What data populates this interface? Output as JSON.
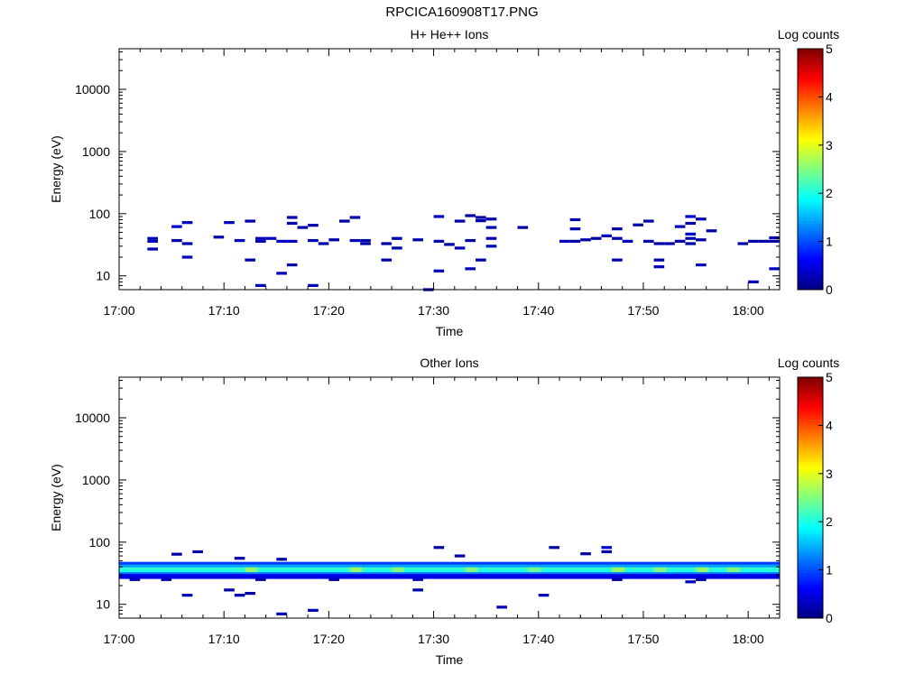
{
  "page_title": "RPCICA160908T17.PNG",
  "chart_data": [
    {
      "type": "heatmap",
      "title": "H+ He++ Ions",
      "xlabel": "Time",
      "ylabel": "Energy (eV)",
      "x_range_minutes": [
        0,
        63
      ],
      "x_ticks": [
        {
          "t": 0,
          "label": "17:00"
        },
        {
          "t": 10,
          "label": "17:10"
        },
        {
          "t": 20,
          "label": "17:20"
        },
        {
          "t": 30,
          "label": "17:30"
        },
        {
          "t": 40,
          "label": "17:40"
        },
        {
          "t": 50,
          "label": "17:50"
        },
        {
          "t": 60,
          "label": "18:00"
        }
      ],
      "y_scale": "log",
      "y_range": [
        6,
        45000
      ],
      "y_ticks": [
        {
          "v": 10,
          "label": "10"
        },
        {
          "v": 100,
          "label": "100"
        },
        {
          "v": 1000,
          "label": "1000"
        },
        {
          "v": 10000,
          "label": "10000"
        }
      ],
      "colorbar": {
        "label": "Log counts",
        "range": [
          0,
          5
        ],
        "ticks": [
          "0",
          "1",
          "2",
          "3",
          "4",
          "5"
        ]
      },
      "cells": [
        {
          "t": 3.2,
          "e": 40,
          "c": 0.3
        },
        {
          "t": 3.2,
          "e": 36,
          "c": 0.3
        },
        {
          "t": 3.2,
          "e": 27,
          "c": 0.3
        },
        {
          "t": 5.5,
          "e": 62,
          "c": 0.4
        },
        {
          "t": 5.5,
          "e": 37,
          "c": 0.2
        },
        {
          "t": 6.5,
          "e": 72,
          "c": 0.3
        },
        {
          "t": 6.5,
          "e": 33,
          "c": 0.2
        },
        {
          "t": 6.5,
          "e": 20,
          "c": 0.3
        },
        {
          "t": 9.5,
          "e": 42,
          "c": 0.2
        },
        {
          "t": 10.5,
          "e": 72,
          "c": 0.3
        },
        {
          "t": 11.5,
          "e": 37,
          "c": 0.3
        },
        {
          "t": 12.5,
          "e": 76,
          "c": 0.2
        },
        {
          "t": 12.5,
          "e": 18,
          "c": 0.2
        },
        {
          "t": 13.5,
          "e": 40,
          "c": 0.3
        },
        {
          "t": 13.5,
          "e": 36,
          "c": 0.3
        },
        {
          "t": 13.5,
          "e": 7,
          "c": 0.3
        },
        {
          "t": 14.5,
          "e": 40,
          "c": 0.3
        },
        {
          "t": 15.5,
          "e": 36,
          "c": 0.3
        },
        {
          "t": 15.5,
          "e": 11,
          "c": 0.3
        },
        {
          "t": 16.5,
          "e": 87,
          "c": 0.2
        },
        {
          "t": 16.5,
          "e": 70,
          "c": 0.2
        },
        {
          "t": 16.5,
          "e": 36,
          "c": 0.3
        },
        {
          "t": 16.5,
          "e": 15,
          "c": 0.2
        },
        {
          "t": 17.5,
          "e": 60,
          "c": 0.2
        },
        {
          "t": 18.5,
          "e": 65,
          "c": 0.2
        },
        {
          "t": 18.5,
          "e": 37,
          "c": 0.3
        },
        {
          "t": 18.5,
          "e": 7,
          "c": 0.3
        },
        {
          "t": 19.5,
          "e": 33,
          "c": 0.2
        },
        {
          "t": 20.5,
          "e": 38,
          "c": 0.2
        },
        {
          "t": 21.5,
          "e": 76,
          "c": 0.2
        },
        {
          "t": 22.5,
          "e": 87,
          "c": 0.2
        },
        {
          "t": 22.5,
          "e": 37,
          "c": 0.3
        },
        {
          "t": 23.5,
          "e": 33,
          "c": 0.2
        },
        {
          "t": 23.5,
          "e": 37,
          "c": 0.2
        },
        {
          "t": 25.5,
          "e": 33,
          "c": 0.2
        },
        {
          "t": 25.5,
          "e": 18,
          "c": 0.2
        },
        {
          "t": 26.5,
          "e": 40,
          "c": 0.2
        },
        {
          "t": 26.5,
          "e": 28,
          "c": 0.2
        },
        {
          "t": 28.5,
          "e": 38,
          "c": 0.2
        },
        {
          "t": 29.5,
          "e": 6,
          "c": 0.3
        },
        {
          "t": 30.5,
          "e": 90,
          "c": 0.3
        },
        {
          "t": 30.5,
          "e": 36,
          "c": 0.2
        },
        {
          "t": 30.5,
          "e": 12,
          "c": 0.3
        },
        {
          "t": 31.5,
          "e": 32,
          "c": 0.2
        },
        {
          "t": 32.5,
          "e": 76,
          "c": 0.2
        },
        {
          "t": 32.5,
          "e": 28,
          "c": 0.3
        },
        {
          "t": 33.5,
          "e": 93,
          "c": 0.2
        },
        {
          "t": 33.5,
          "e": 37,
          "c": 0.2
        },
        {
          "t": 33.5,
          "e": 13,
          "c": 0.3
        },
        {
          "t": 34.5,
          "e": 87,
          "c": 0.2
        },
        {
          "t": 34.5,
          "e": 77,
          "c": 0.2
        },
        {
          "t": 34.5,
          "e": 18,
          "c": 0.2
        },
        {
          "t": 35.5,
          "e": 82,
          "c": 0.2
        },
        {
          "t": 35.5,
          "e": 60,
          "c": 0.2
        },
        {
          "t": 35.5,
          "e": 40,
          "c": 0.2
        },
        {
          "t": 35.5,
          "e": 30,
          "c": 0.3
        },
        {
          "t": 38.5,
          "e": 60,
          "c": 0.2
        },
        {
          "t": 42.5,
          "e": 36,
          "c": 0.3
        },
        {
          "t": 43.5,
          "e": 80,
          "c": 0.2
        },
        {
          "t": 43.5,
          "e": 57,
          "c": 0.2
        },
        {
          "t": 43.5,
          "e": 36,
          "c": 0.2
        },
        {
          "t": 44.5,
          "e": 38,
          "c": 0.2
        },
        {
          "t": 45.5,
          "e": 40,
          "c": 0.2
        },
        {
          "t": 46.5,
          "e": 44,
          "c": 0.3
        },
        {
          "t": 47.5,
          "e": 57,
          "c": 0.2
        },
        {
          "t": 47.5,
          "e": 40,
          "c": 0.2
        },
        {
          "t": 47.5,
          "e": 18,
          "c": 0.2
        },
        {
          "t": 48.5,
          "e": 36,
          "c": 0.3
        },
        {
          "t": 49.5,
          "e": 66,
          "c": 0.2
        },
        {
          "t": 50.5,
          "e": 76,
          "c": 0.2
        },
        {
          "t": 50.5,
          "e": 36,
          "c": 0.2
        },
        {
          "t": 51.5,
          "e": 33,
          "c": 0.2
        },
        {
          "t": 51.5,
          "e": 18,
          "c": 0.2
        },
        {
          "t": 51.5,
          "e": 14,
          "c": 0.3
        },
        {
          "t": 52.5,
          "e": 33,
          "c": 0.2
        },
        {
          "t": 53.5,
          "e": 62,
          "c": 0.3
        },
        {
          "t": 53.5,
          "e": 36,
          "c": 0.2
        },
        {
          "t": 54.5,
          "e": 90,
          "c": 0.4
        },
        {
          "t": 54.5,
          "e": 70,
          "c": 0.2
        },
        {
          "t": 54.5,
          "e": 47,
          "c": 0.4
        },
        {
          "t": 54.5,
          "e": 40,
          "c": 0.2
        },
        {
          "t": 54.5,
          "e": 33,
          "c": 0.2
        },
        {
          "t": 55.5,
          "e": 82,
          "c": 0.2
        },
        {
          "t": 55.5,
          "e": 38,
          "c": 0.2
        },
        {
          "t": 55.5,
          "e": 15,
          "c": 0.3
        },
        {
          "t": 56.5,
          "e": 53,
          "c": 0.2
        },
        {
          "t": 59.5,
          "e": 33,
          "c": 0.2
        },
        {
          "t": 60.5,
          "e": 36,
          "c": 0.2
        },
        {
          "t": 60.5,
          "e": 8,
          "c": 0.3
        },
        {
          "t": 61.5,
          "e": 36,
          "c": 0.2
        },
        {
          "t": 62.5,
          "e": 41,
          "c": 0.2
        },
        {
          "t": 62.5,
          "e": 36,
          "c": 0.2
        },
        {
          "t": 62.5,
          "e": 13,
          "c": 0.3
        }
      ]
    },
    {
      "type": "heatmap",
      "title": "Other Ions",
      "xlabel": "Time",
      "ylabel": "Energy (eV)",
      "x_range_minutes": [
        0,
        63
      ],
      "x_ticks": [
        {
          "t": 0,
          "label": "17:00"
        },
        {
          "t": 10,
          "label": "17:10"
        },
        {
          "t": 20,
          "label": "17:20"
        },
        {
          "t": 30,
          "label": "17:30"
        },
        {
          "t": 40,
          "label": "17:40"
        },
        {
          "t": 50,
          "label": "17:50"
        },
        {
          "t": 60,
          "label": "18:00"
        }
      ],
      "y_scale": "log",
      "y_range": [
        6,
        45000
      ],
      "y_ticks": [
        {
          "v": 10,
          "label": "10"
        },
        {
          "v": 100,
          "label": "100"
        },
        {
          "v": 1000,
          "label": "1000"
        },
        {
          "v": 10000,
          "label": "10000"
        }
      ],
      "colorbar": {
        "label": "Log counts",
        "range": [
          0,
          5
        ],
        "ticks": [
          "0",
          "1",
          "2",
          "3",
          "4",
          "5"
        ]
      },
      "band": {
        "t_range": [
          0.5,
          62.5
        ],
        "rows": [
          {
            "e": 44,
            "c": 0.9
          },
          {
            "e": 40,
            "c": 1.4
          },
          {
            "e": 36,
            "c": 2.1
          },
          {
            "e": 33,
            "c": 2.0
          },
          {
            "e": 30,
            "c": 1.2
          },
          {
            "e": 28,
            "c": 0.5
          }
        ],
        "hot_spots": [
          {
            "t": 12.5,
            "e": 36,
            "c": 2.6
          },
          {
            "t": 22.5,
            "e": 36,
            "c": 2.6
          },
          {
            "t": 26.5,
            "e": 36,
            "c": 2.5
          },
          {
            "t": 33.5,
            "e": 36,
            "c": 2.5
          },
          {
            "t": 39.5,
            "e": 36,
            "c": 2.4
          },
          {
            "t": 47.5,
            "e": 36,
            "c": 2.6
          },
          {
            "t": 51.5,
            "e": 36,
            "c": 2.5
          },
          {
            "t": 55.5,
            "e": 36,
            "c": 2.6
          },
          {
            "t": 58.5,
            "e": 36,
            "c": 2.5
          }
        ]
      },
      "cells": [
        {
          "t": 1.5,
          "e": 25,
          "c": 0.3
        },
        {
          "t": 4.5,
          "e": 25,
          "c": 0.2
        },
        {
          "t": 5.5,
          "e": 64,
          "c": 0.2
        },
        {
          "t": 6.5,
          "e": 14,
          "c": 0.3
        },
        {
          "t": 7.5,
          "e": 70,
          "c": 0.2
        },
        {
          "t": 10.5,
          "e": 17,
          "c": 0.2
        },
        {
          "t": 11.5,
          "e": 55,
          "c": 0.2
        },
        {
          "t": 11.5,
          "e": 14,
          "c": 0.3
        },
        {
          "t": 12.5,
          "e": 15,
          "c": 0.2
        },
        {
          "t": 13.5,
          "e": 25,
          "c": 0.2
        },
        {
          "t": 15.5,
          "e": 53,
          "c": 0.2
        },
        {
          "t": 15.5,
          "e": 7,
          "c": 0.3
        },
        {
          "t": 18.5,
          "e": 8,
          "c": 0.3
        },
        {
          "t": 20.5,
          "e": 25,
          "c": 0.2
        },
        {
          "t": 28.5,
          "e": 25,
          "c": 0.3
        },
        {
          "t": 28.5,
          "e": 17,
          "c": 0.2
        },
        {
          "t": 30.5,
          "e": 82,
          "c": 0.2
        },
        {
          "t": 32.5,
          "e": 60,
          "c": 0.2
        },
        {
          "t": 36.5,
          "e": 9,
          "c": 0.3
        },
        {
          "t": 40.5,
          "e": 14,
          "c": 0.3
        },
        {
          "t": 41.5,
          "e": 82,
          "c": 0.2
        },
        {
          "t": 44.5,
          "e": 65,
          "c": 0.2
        },
        {
          "t": 46.5,
          "e": 82,
          "c": 0.4
        },
        {
          "t": 46.5,
          "e": 70,
          "c": 0.2
        },
        {
          "t": 47.5,
          "e": 25,
          "c": 0.2
        },
        {
          "t": 54.5,
          "e": 23,
          "c": 0.3
        },
        {
          "t": 55.5,
          "e": 25,
          "c": 0.2
        }
      ]
    }
  ]
}
